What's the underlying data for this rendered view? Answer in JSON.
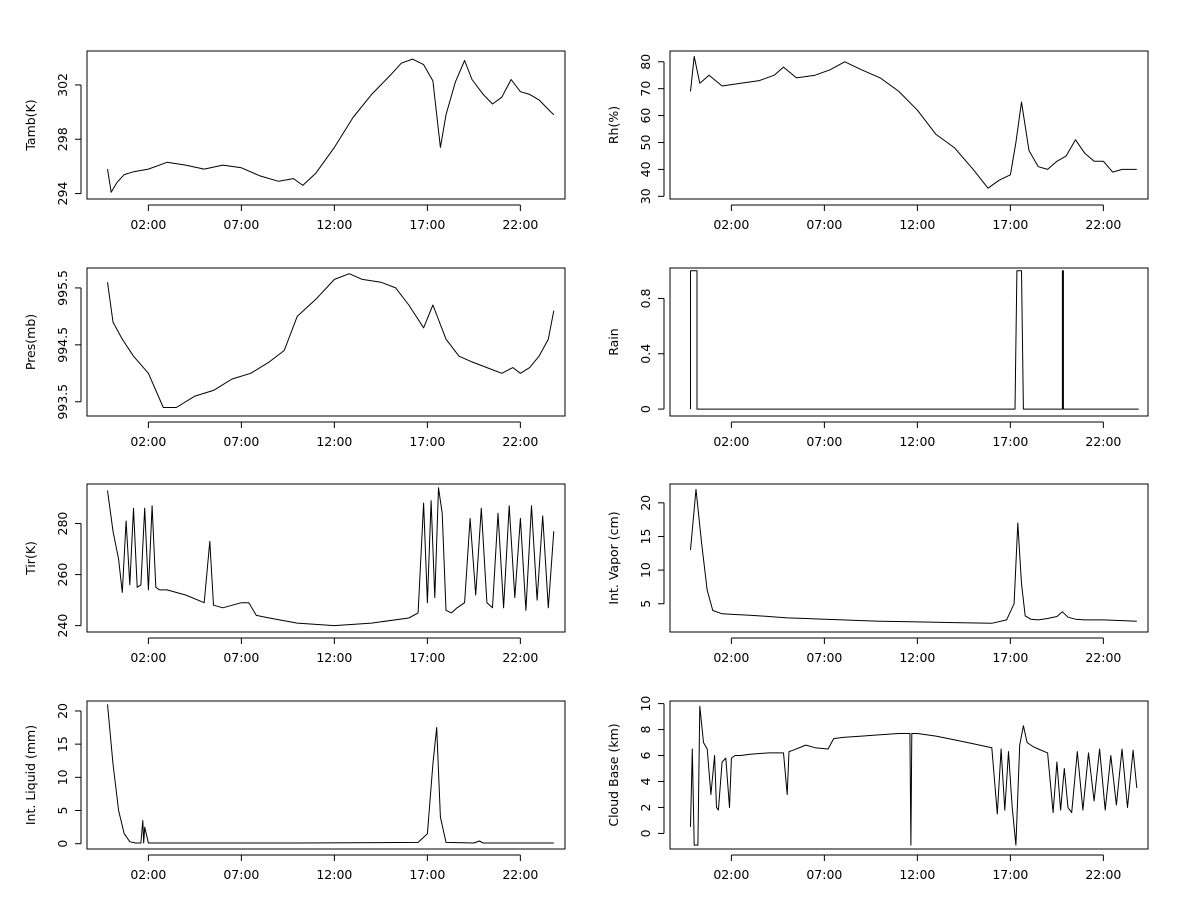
{
  "chart_data": [
    {
      "type": "line",
      "ylabel": "Tamb(K)",
      "xticks": [
        "02:00",
        "07:00",
        "12:00",
        "17:00",
        "22:00"
      ],
      "xlim": [
        -1.3,
        24.4
      ],
      "ylim": [
        293.6,
        304.5
      ],
      "yticks": [
        294,
        298,
        302
      ],
      "x": [
        -0.2,
        0,
        0.3,
        0.7,
        1.2,
        2,
        3,
        4,
        5,
        6,
        7,
        8,
        9,
        9.8,
        10.3,
        11,
        12,
        13,
        14,
        15,
        15.6,
        16.2,
        16.8,
        17.3,
        17.7,
        18.0,
        18.5,
        19.0,
        19.4,
        20.0,
        20.5,
        21,
        21.5,
        22,
        22.5,
        23,
        23.5,
        23.8
      ],
      "values": [
        295.8,
        294.1,
        294.8,
        295.4,
        295.6,
        295.8,
        296.3,
        296.1,
        295.8,
        296.1,
        295.9,
        295.3,
        294.9,
        295.1,
        294.6,
        295.5,
        297.4,
        299.6,
        301.3,
        302.7,
        303.6,
        303.9,
        303.5,
        302.3,
        297.4,
        299.8,
        302.2,
        303.8,
        302.4,
        301.3,
        300.6,
        301.1,
        302.4,
        301.5,
        301.3,
        300.9,
        300.2,
        299.8
      ]
    },
    {
      "type": "line",
      "ylabel": "Rh(%)",
      "xticks": [
        "02:00",
        "07:00",
        "12:00",
        "17:00",
        "22:00"
      ],
      "xlim": [
        -1.3,
        24.4
      ],
      "ylim": [
        29,
        84
      ],
      "yticks": [
        30,
        40,
        50,
        60,
        70,
        80
      ],
      "x": [
        -0.2,
        0,
        0.3,
        0.8,
        1.5,
        2.5,
        3.5,
        4.3,
        4.8,
        5.5,
        6.5,
        7.3,
        8.1,
        9,
        10,
        11,
        12,
        13,
        14,
        15,
        15.8,
        16.4,
        17,
        17.3,
        17.6,
        18.0,
        18.5,
        19.0,
        19.5,
        20,
        20.5,
        21,
        21.5,
        22,
        22.5,
        23,
        23.5,
        23.8
      ],
      "values": [
        69,
        82,
        72,
        75,
        71,
        72,
        73,
        75,
        78,
        74,
        75,
        77,
        80,
        77,
        74,
        69,
        62,
        53,
        48,
        40,
        33,
        36,
        38,
        50,
        65,
        47,
        41,
        40,
        43,
        45,
        51,
        46,
        43,
        43,
        39,
        40,
        40,
        40
      ]
    },
    {
      "type": "line",
      "ylabel": "Rain",
      "xticks": [
        "02:00",
        "07:00",
        "12:00",
        "17:00",
        "22:00"
      ],
      "xlim": [
        -1.3,
        24.4
      ],
      "ylim": [
        -0.05,
        1.02
      ],
      "yticks": [
        0.0,
        0.4,
        0.8
      ],
      "x": [
        -0.2,
        -0.2,
        0.15,
        0.15,
        17.25,
        17.35,
        17.5,
        17.6,
        17.7,
        19.8,
        19.8,
        19.85,
        19.85,
        23.9
      ],
      "values": [
        0,
        1,
        1,
        0,
        0,
        1,
        1,
        1,
        0,
        0,
        1,
        1,
        0,
        0
      ]
    },
    {
      "type": "line",
      "ylabel": "Pres(mb)",
      "xticks": [
        "02:00",
        "07:00",
        "12:00",
        "17:00",
        "22:00"
      ],
      "xlim": [
        -1.3,
        24.4
      ],
      "ylim": [
        993.25,
        995.85
      ],
      "yticks": [
        993.5,
        994.5,
        995.5
      ],
      "x": [
        -0.2,
        0.1,
        0.6,
        1.2,
        2.0,
        2.8,
        3.5,
        4.5,
        5.5,
        6.5,
        7.5,
        8.5,
        9.3,
        10,
        11,
        12,
        12.8,
        13.5,
        14.5,
        15.3,
        16,
        16.4,
        16.8,
        17.3,
        18,
        18.7,
        19.4,
        20.2,
        21,
        21.6,
        22,
        22.5,
        23,
        23.5,
        23.8
      ],
      "values": [
        995.6,
        994.9,
        994.6,
        994.3,
        994.0,
        993.4,
        993.4,
        993.6,
        993.7,
        993.9,
        994.0,
        994.2,
        994.4,
        995.0,
        995.3,
        995.65,
        995.75,
        995.65,
        995.6,
        995.5,
        995.2,
        995.0,
        994.8,
        995.2,
        994.6,
        994.3,
        994.2,
        994.1,
        994.0,
        994.1,
        994.0,
        994.1,
        994.3,
        994.6,
        995.1
      ]
    },
    {
      "type": "line",
      "ylabel": "Tir(K)",
      "xticks": [
        "02:00",
        "07:00",
        "12:00",
        "17:00",
        "22:00"
      ],
      "xlim": [
        -1.3,
        24.4
      ],
      "ylim": [
        237.5,
        295.5
      ],
      "yticks": [
        240,
        260,
        280
      ],
      "x": [
        -0.2,
        0.1,
        0.4,
        0.6,
        0.8,
        1.0,
        1.2,
        1.4,
        1.6,
        1.8,
        2.0,
        2.2,
        2.4,
        2.6,
        3,
        4,
        5,
        5.3,
        5.5,
        6,
        7,
        7.4,
        7.8,
        8.5,
        10,
        12,
        14,
        16,
        16.5,
        16.8,
        17.0,
        17.2,
        17.4,
        17.6,
        17.8,
        18.0,
        18.3,
        18.6,
        19.0,
        19.3,
        19.6,
        19.9,
        20.2,
        20.5,
        20.8,
        21.1,
        21.4,
        21.7,
        22.0,
        22.3,
        22.6,
        22.9,
        23.2,
        23.5,
        23.8
      ],
      "values": [
        293,
        277,
        266,
        253,
        281,
        256,
        286,
        255,
        256,
        286,
        254,
        287,
        255,
        254,
        254,
        252,
        249,
        273,
        248,
        247,
        249,
        249,
        244,
        243,
        241,
        240,
        241,
        243,
        245,
        288,
        249,
        289,
        251,
        294,
        284,
        246,
        245,
        247,
        249,
        282,
        252,
        286,
        249,
        247,
        284,
        247,
        287,
        251,
        282,
        246,
        287,
        250,
        283,
        247,
        277
      ]
    },
    {
      "type": "line",
      "ylabel": "Int. Vapor (cm)",
      "xticks": [
        "02:00",
        "07:00",
        "12:00",
        "17:00",
        "22:00"
      ],
      "xlim": [
        -1.3,
        24.4
      ],
      "ylim": [
        0.8,
        22.8
      ],
      "yticks": [
        5,
        10,
        15,
        20
      ],
      "x": [
        -0.2,
        0.1,
        0.4,
        0.7,
        1.0,
        1.5,
        2.2,
        3,
        4,
        5,
        6,
        7,
        8,
        9,
        10,
        12,
        14,
        16,
        16.8,
        17.2,
        17.4,
        17.6,
        17.8,
        18.1,
        18.5,
        19,
        19.5,
        19.8,
        20.1,
        20.5,
        21,
        22,
        23,
        23.8
      ],
      "values": [
        13,
        22,
        14,
        7,
        4,
        3.5,
        3.4,
        3.3,
        3.1,
        2.9,
        2.8,
        2.7,
        2.6,
        2.5,
        2.4,
        2.3,
        2.2,
        2.1,
        2.6,
        5,
        17,
        8,
        3.2,
        2.7,
        2.6,
        2.8,
        3.1,
        3.8,
        3.0,
        2.7,
        2.6,
        2.6,
        2.5,
        2.4
      ]
    },
    {
      "type": "line",
      "ylabel": "Int. Liquid (mm)",
      "xticks": [
        "02:00",
        "07:00",
        "12:00",
        "17:00",
        "22:00"
      ],
      "xlim": [
        -1.3,
        24.4
      ],
      "ylim": [
        -0.8,
        21.5
      ],
      "yticks": [
        0,
        5,
        10,
        15,
        20
      ],
      "x": [
        -0.2,
        0.1,
        0.4,
        0.7,
        1.0,
        1.3,
        1.6,
        1.7,
        1.75,
        1.8,
        2.0,
        5,
        10,
        16.5,
        17.0,
        17.3,
        17.5,
        17.7,
        18.0,
        19.5,
        19.8,
        20.0,
        22,
        23.8
      ],
      "values": [
        21,
        12,
        5,
        1.5,
        0.3,
        0.1,
        0.1,
        3.5,
        0.1,
        2.5,
        0.1,
        0.1,
        0.1,
        0.2,
        1.5,
        12,
        17.5,
        4,
        0.2,
        0.1,
        0.4,
        0.1,
        0.1,
        0.1
      ]
    },
    {
      "type": "line",
      "ylabel": "Cloud Base (km)",
      "xticks": [
        "02:00",
        "07:00",
        "12:00",
        "17:00",
        "22:00"
      ],
      "xlim": [
        -1.3,
        24.4
      ],
      "ylim": [
        -1.2,
        10.2
      ],
      "yticks": [
        0,
        2,
        4,
        6,
        8,
        10
      ],
      "x": [
        -0.2,
        -0.1,
        0.0,
        0.2,
        0.3,
        0.5,
        0.7,
        0.9,
        1.1,
        1.2,
        1.3,
        1.5,
        1.7,
        1.9,
        2.0,
        2.2,
        2.5,
        3,
        4,
        4.8,
        5.0,
        5.1,
        5.3,
        6,
        6.5,
        7.2,
        7.5,
        8,
        9,
        10,
        11,
        11.6,
        11.65,
        11.7,
        12,
        13,
        14,
        15,
        16,
        16.3,
        16.5,
        16.7,
        16.9,
        17.1,
        17.3,
        17.5,
        17.7,
        17.9,
        18.2,
        18.5,
        19,
        19.3,
        19.5,
        19.7,
        19.9,
        20.1,
        20.3,
        20.6,
        20.9,
        21.2,
        21.5,
        21.8,
        22.1,
        22.4,
        22.7,
        23.0,
        23.3,
        23.6,
        23.8
      ],
      "values": [
        0.5,
        6.5,
        -0.9,
        -0.9,
        9.8,
        7.0,
        6.5,
        3.0,
        6.0,
        2.0,
        1.8,
        5.5,
        5.8,
        2.0,
        5.8,
        6.0,
        6.0,
        6.1,
        6.2,
        6.2,
        3.0,
        6.3,
        6.4,
        6.8,
        6.6,
        6.5,
        7.3,
        7.4,
        7.5,
        7.6,
        7.7,
        7.7,
        -0.9,
        7.7,
        7.7,
        7.5,
        7.2,
        6.9,
        6.6,
        1.5,
        6.5,
        1.8,
        6.3,
        2.0,
        -0.9,
        6.8,
        8.3,
        7.0,
        6.7,
        6.5,
        6.2,
        1.6,
        5.5,
        1.8,
        5.0,
        2.0,
        1.6,
        6.3,
        1.8,
        6.2,
        2.5,
        6.5,
        1.8,
        6.0,
        2.2,
        6.5,
        2.0,
        6.4,
        3.5
      ]
    }
  ]
}
